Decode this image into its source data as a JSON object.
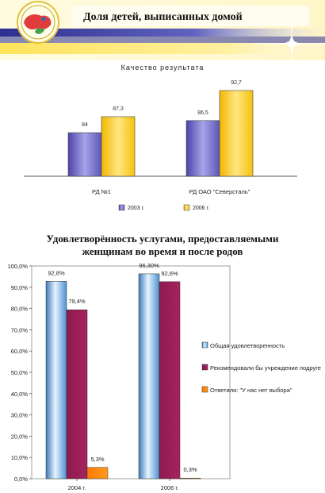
{
  "header": {
    "title": "Доля детей, выписанных домой"
  },
  "charts": [
    {
      "type": "bar",
      "title": "Качество результата",
      "categories": [
        "РД №1",
        "РД ОАО \"Северсталь\""
      ],
      "series": [
        {
          "name": "2003 г.",
          "values": [
            84,
            86.5
          ],
          "labels": [
            "84",
            "86,5"
          ]
        },
        {
          "name": "2006 г.",
          "values": [
            87.3,
            92.7
          ],
          "labels": [
            "87,3",
            "92,7"
          ]
        }
      ],
      "ylim": [
        75,
        95
      ],
      "legend_position": "bottom",
      "colors": [
        "#7b74c9",
        "#ffd23f"
      ]
    },
    {
      "type": "bar",
      "title": "Удовлетворённость услугами, предоставляемыми женщинам во время и после родов",
      "categories": [
        "2004 г.",
        "2006 г."
      ],
      "series": [
        {
          "name": "Общая удовлетворенность",
          "values": [
            92.8,
            96.3
          ],
          "labels": [
            "92,8%",
            "96,30%"
          ]
        },
        {
          "name": "Рекомендовали бы учреждение  подруге",
          "values": [
            79.4,
            92.6
          ],
          "labels": [
            "79,4%",
            "92,6%"
          ]
        },
        {
          "name": "Ответили: \"У нас нет выбора\"",
          "values": [
            5.3,
            0.3
          ],
          "labels": [
            "5,3%",
            "0,3%"
          ]
        }
      ],
      "ylim": [
        0,
        100
      ],
      "yticks": [
        "0,0%",
        "10,0%",
        "20,0%",
        "30,0%",
        "40,0%",
        "50,0%",
        "60,0%",
        "70,0%",
        "80,0%",
        "90,0%",
        "100,0%"
      ],
      "legend_position": "right",
      "colors": [
        "#7fb8e6",
        "#a01e5a",
        "#ff8a00"
      ]
    }
  ]
}
